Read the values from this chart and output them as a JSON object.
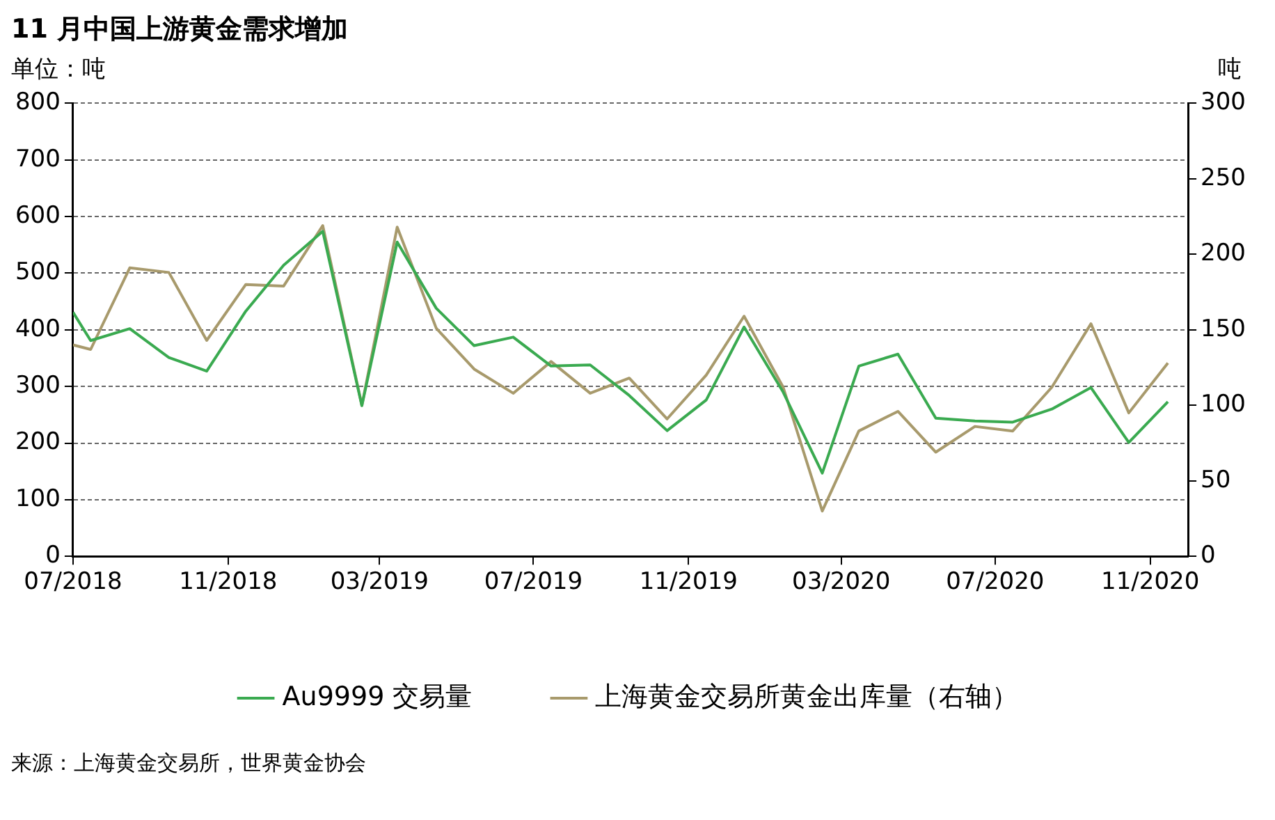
{
  "chart_data": {
    "type": "line",
    "title": "11 月中国上游黄金需求增加",
    "ylabel": "单位：吨",
    "y2label": "吨",
    "x": [
      "2018-07-01",
      "2018-07-15",
      "2018-08-15",
      "2018-09-15",
      "2018-10-15",
      "2018-11-15",
      "2018-12-15",
      "2019-01-15",
      "2019-02-15",
      "2019-03-15",
      "2019-04-15",
      "2019-05-15",
      "2019-06-15",
      "2019-07-15",
      "2019-08-15",
      "2019-09-15",
      "2019-10-15",
      "2019-11-15",
      "2019-12-15",
      "2020-01-15",
      "2020-02-15",
      "2020-03-15",
      "2020-04-15",
      "2020-05-15",
      "2020-06-15",
      "2020-07-15",
      "2020-08-15",
      "2020-09-15",
      "2020-10-15",
      "2020-11-15"
    ],
    "series": [
      {
        "name": "Au9999 交易量",
        "color": "#3aaa50",
        "values": [
          431,
          381,
          402,
          351,
          327,
          433,
          514,
          574,
          266,
          555,
          438,
          372,
          387,
          336,
          338,
          284,
          222,
          276,
          405,
          290,
          147,
          336,
          357,
          244,
          239,
          237,
          260,
          298,
          201,
          273
        ]
      },
      {
        "name": "上海黄金交易所黄金出库量（右轴）",
        "color": "#a89a6c",
        "axis": "y2",
        "values": [
          140,
          137,
          191,
          188,
          143,
          180,
          179,
          219,
          100,
          218,
          151,
          124,
          108,
          129,
          108,
          118,
          91,
          120,
          159,
          112,
          30,
          83,
          96,
          69,
          86,
          83,
          112,
          154,
          95,
          128
        ]
      }
    ],
    "xlim": [
      "2018-07",
      "2020-12"
    ],
    "xticks": [
      {
        "value": "2018-07",
        "label": "07/2018"
      },
      {
        "value": "2018-11",
        "label": "11/2018"
      },
      {
        "value": "2019-03",
        "label": "03/2019"
      },
      {
        "value": "2019-07",
        "label": "07/2019"
      },
      {
        "value": "2019-11",
        "label": "11/2019"
      },
      {
        "value": "2020-03",
        "label": "03/2020"
      },
      {
        "value": "2020-07",
        "label": "07/2020"
      },
      {
        "value": "2020-11",
        "label": "11/2020"
      }
    ],
    "ylim": [
      0,
      800
    ],
    "yticks": [
      0,
      100,
      200,
      300,
      400,
      500,
      600,
      700,
      800
    ],
    "y2lim": [
      0,
      300
    ],
    "y2ticks": [
      0,
      50,
      100,
      150,
      200,
      250,
      300
    ],
    "grid": "y",
    "legend": "bottom",
    "annotations": [
      "来源：上海黄金交易所，世界黄金协会"
    ]
  }
}
